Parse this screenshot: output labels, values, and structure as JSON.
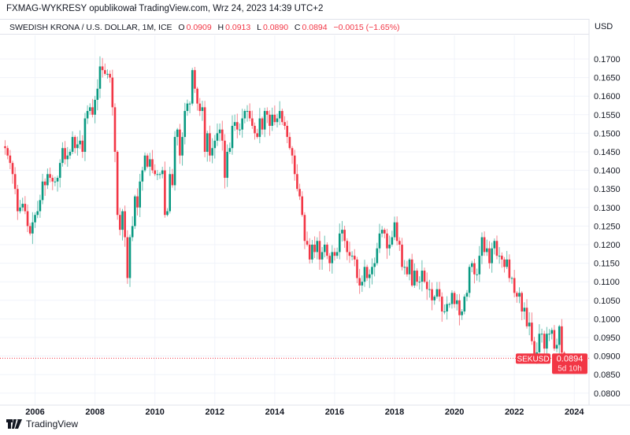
{
  "header": {
    "publisher": "FXMAG-WYKRESY opublikował TradingView.com, Wrz 24, 2023 14:39 UTC+2",
    "symbol": "SWEDISH KRONA / U.S. DOLLAR, 1M, ICE",
    "o_label": "O",
    "o": "0.0909",
    "h_label": "H",
    "h": "0.0913",
    "l_label": "L",
    "l": "0.0890",
    "c_label": "C",
    "c": "0.0894",
    "change": "−0.0015 (−1.65%)",
    "currency": "USD"
  },
  "footer": {
    "brand": "TradingView"
  },
  "colors": {
    "up": "#089981",
    "down": "#f23645",
    "grid": "#f0f3fa",
    "text": "#131722"
  },
  "chart_data": {
    "type": "candlestick",
    "interval": "1M",
    "start": "2005-01",
    "ylim": [
      0.078,
      0.1735
    ],
    "y_ticks": [
      "0.0800",
      "0.0850",
      "0.0900",
      "0.0950",
      "0.1000",
      "0.1050",
      "0.1100",
      "0.1150",
      "0.1200",
      "0.1250",
      "0.1300",
      "0.1350",
      "0.1400",
      "0.1450",
      "0.1500",
      "0.1550",
      "0.1600",
      "0.1650",
      "0.1700"
    ],
    "x_ticks": [
      "2006",
      "2008",
      "2010",
      "2012",
      "2014",
      "2016",
      "2018",
      "2020",
      "2022",
      "2024"
    ],
    "grid": true,
    "last": {
      "symbol": "SEKUSD",
      "price": "0.0894",
      "countdown": "5d 10h"
    },
    "first_open": 0.1465,
    "closes": [
      0.146,
      0.144,
      0.142,
      0.139,
      0.135,
      0.129,
      0.13,
      0.131,
      0.129,
      0.125,
      0.123,
      0.126,
      0.128,
      0.129,
      0.132,
      0.137,
      0.136,
      0.139,
      0.138,
      0.137,
      0.137,
      0.138,
      0.142,
      0.146,
      0.143,
      0.144,
      0.145,
      0.149,
      0.146,
      0.147,
      0.148,
      0.145,
      0.154,
      0.156,
      0.157,
      0.155,
      0.159,
      0.162,
      0.168,
      0.167,
      0.166,
      0.166,
      0.165,
      0.157,
      0.145,
      0.128,
      0.124,
      0.129,
      0.122,
      0.111,
      0.122,
      0.125,
      0.133,
      0.13,
      0.137,
      0.14,
      0.144,
      0.141,
      0.143,
      0.14,
      0.139,
      0.139,
      0.139,
      0.14,
      0.128,
      0.129,
      0.139,
      0.136,
      0.149,
      0.151,
      0.144,
      0.149,
      0.156,
      0.158,
      0.158,
      0.167,
      0.162,
      0.158,
      0.156,
      0.157,
      0.145,
      0.15,
      0.144,
      0.146,
      0.148,
      0.15,
      0.151,
      0.148,
      0.138,
      0.145,
      0.146,
      0.152,
      0.153,
      0.151,
      0.151,
      0.154,
      0.156,
      0.156,
      0.154,
      0.152,
      0.15,
      0.149,
      0.154,
      0.151,
      0.156,
      0.155,
      0.152,
      0.155,
      0.153,
      0.154,
      0.156,
      0.153,
      0.152,
      0.149,
      0.146,
      0.144,
      0.139,
      0.135,
      0.133,
      0.128,
      0.121,
      0.12,
      0.116,
      0.12,
      0.118,
      0.121,
      0.116,
      0.118,
      0.12,
      0.117,
      0.115,
      0.118,
      0.117,
      0.118,
      0.123,
      0.124,
      0.121,
      0.118,
      0.117,
      0.117,
      0.116,
      0.111,
      0.109,
      0.11,
      0.114,
      0.111,
      0.112,
      0.114,
      0.115,
      0.119,
      0.123,
      0.124,
      0.123,
      0.119,
      0.12,
      0.122,
      0.126,
      0.121,
      0.12,
      0.114,
      0.114,
      0.112,
      0.116,
      0.109,
      0.113,
      0.11,
      0.11,
      0.113,
      0.11,
      0.108,
      0.108,
      0.105,
      0.106,
      0.108,
      0.106,
      0.102,
      0.102,
      0.104,
      0.104,
      0.107,
      0.104,
      0.105,
      0.101,
      0.102,
      0.106,
      0.107,
      0.114,
      0.115,
      0.112,
      0.112,
      0.117,
      0.122,
      0.118,
      0.119,
      0.115,
      0.119,
      0.121,
      0.117,
      0.117,
      0.116,
      0.114,
      0.116,
      0.111,
      0.111,
      0.107,
      0.106,
      0.107,
      0.102,
      0.103,
      0.098,
      0.099,
      0.094,
      0.09,
      0.091,
      0.096,
      0.096,
      0.092,
      0.096,
      0.096,
      0.097,
      0.092,
      0.093,
      0.098,
      0.0909,
      0.0894
    ]
  }
}
